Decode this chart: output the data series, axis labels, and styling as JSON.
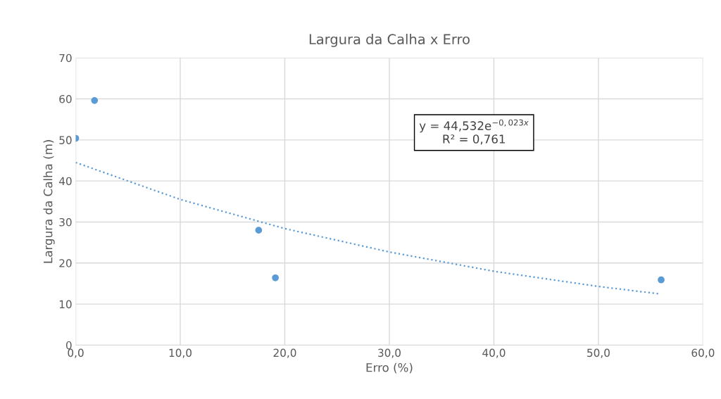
{
  "chart_data": {
    "type": "scatter",
    "title": "Largura da Calha x Erro",
    "xlabel": "Erro (%)",
    "ylabel": "Largura da Calha (m)",
    "series": [
      {
        "color": "#5b9bd5",
        "marker": "circle",
        "x": [
          0.0,
          1.8,
          17.5,
          19.1,
          56.0
        ],
        "values": [
          50.4,
          59.6,
          28.0,
          16.4,
          15.9
        ]
      },
      {
        "type": "line",
        "color": "#5b9bd5",
        "line_style": "dotted",
        "marker": "none",
        "x": [
          0,
          10,
          20,
          30,
          40,
          50,
          55.8
        ],
        "values": [
          44.5,
          35.5,
          28.4,
          22.7,
          18.0,
          14.3,
          12.5
        ]
      }
    ],
    "annotations": [
      "y = 44,532e$^{−0,023x}$\nR² = 0,761"
    ],
    "xlim": [
      0,
      60
    ],
    "xticks": [
      {
        "value": 0,
        "label": "0,0"
      },
      {
        "value": 10,
        "label": "10,0"
      },
      {
        "value": 20,
        "label": "20,0"
      },
      {
        "value": 30,
        "label": "30,0"
      },
      {
        "value": 40,
        "label": "40,0"
      },
      {
        "value": 50,
        "label": "50,0"
      },
      {
        "value": 60,
        "label": "60,0"
      }
    ],
    "ylim": [
      0,
      70
    ],
    "yticks": [
      0,
      10,
      20,
      30,
      40,
      50,
      60,
      70
    ],
    "grid": true,
    "legend": false
  }
}
